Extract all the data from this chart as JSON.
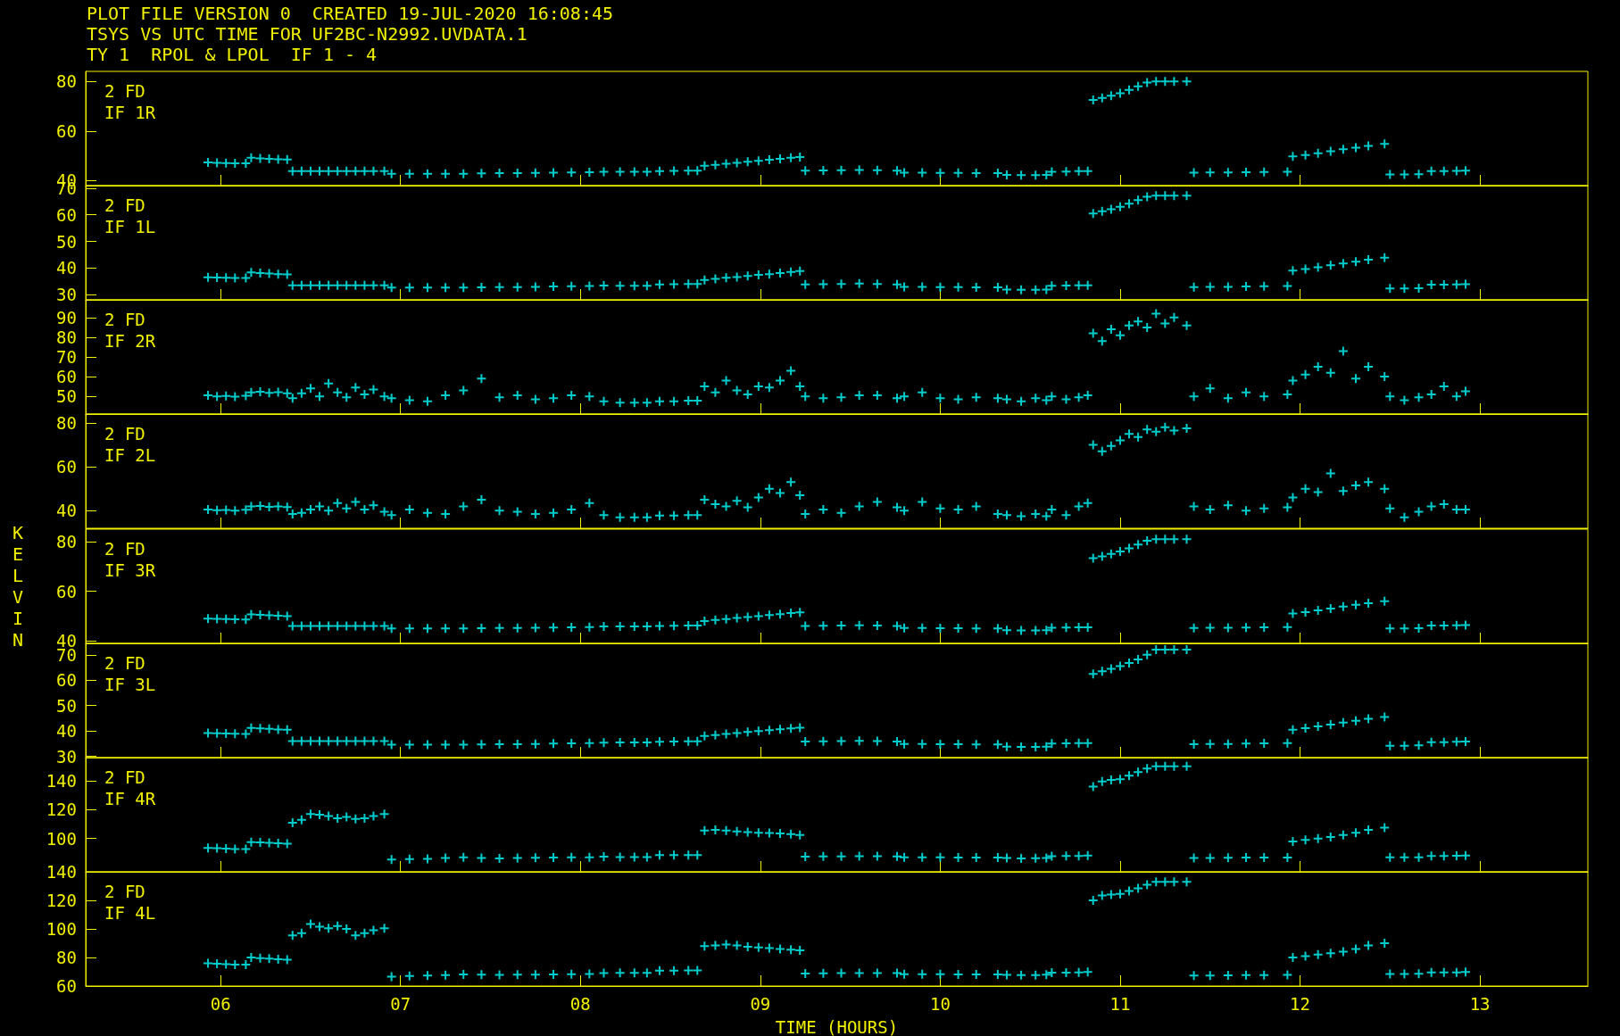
{
  "chart_data": [
    {
      "type": "scatter",
      "title": "2 FD",
      "subtitle": "IF 1R",
      "annotations": [
        "PLOT FILE VERSION 0  CREATED 19-JUL-2020 16:08:45",
        "TSYS VS UTC TIME FOR UF2BC-N2992.UVDATA.1",
        "TY 1  RPOL & LPOL  IF 1 - 4"
      ],
      "marker": "cross",
      "color": "#00ffff",
      "tick_labels": "y",
      "xlim": [
        5.25,
        13.6
      ],
      "xticks": [
        6,
        7,
        8,
        9,
        10,
        11,
        12,
        13
      ],
      "ylim": [
        38,
        84
      ],
      "yticks": [
        40,
        60,
        80
      ],
      "x": [
        5.93,
        5.98,
        6.03,
        6.08,
        6.14,
        6.17,
        6.22,
        6.27,
        6.32,
        6.37,
        6.4,
        6.45,
        6.5,
        6.55,
        6.6,
        6.65,
        6.7,
        6.75,
        6.8,
        6.85,
        6.91,
        6.95,
        7.05,
        7.15,
        7.25,
        7.35,
        7.45,
        7.55,
        7.65,
        7.75,
        7.85,
        7.95,
        8.05,
        8.13,
        8.22,
        8.3,
        8.37,
        8.44,
        8.52,
        8.6,
        8.65,
        8.69,
        8.75,
        8.81,
        8.87,
        8.93,
        8.99,
        9.05,
        9.11,
        9.17,
        9.22,
        9.25,
        9.35,
        9.45,
        9.55,
        9.65,
        9.76,
        9.8,
        9.9,
        10.0,
        10.1,
        10.2,
        10.32,
        10.37,
        10.45,
        10.53,
        10.59,
        10.62,
        10.7,
        10.77,
        10.82,
        10.85,
        10.9,
        10.95,
        11.0,
        11.05,
        11.1,
        11.15,
        11.2,
        11.25,
        11.3,
        11.37,
        11.41,
        11.5,
        11.6,
        11.7,
        11.8,
        11.93,
        11.96,
        12.03,
        12.1,
        12.17,
        12.24,
        12.31,
        12.38,
        12.47,
        12.5,
        12.58,
        12.66,
        12.73,
        12.8,
        12.87,
        12.92
      ],
      "values": [
        47.3,
        47.2,
        47.1,
        47.0,
        47.0,
        49.2,
        49.0,
        48.8,
        48.6,
        48.5,
        43.8,
        43.8,
        43.8,
        43.8,
        43.8,
        43.8,
        43.8,
        43.8,
        43.8,
        43.8,
        43.8,
        42.8,
        42.8,
        42.8,
        42.8,
        42.8,
        42.9,
        43.0,
        43.0,
        43.1,
        43.2,
        43.3,
        43.4,
        43.6,
        43.6,
        43.6,
        43.6,
        43.8,
        43.9,
        44.0,
        44.0,
        46.0,
        46.4,
        46.8,
        47.2,
        47.6,
        48.0,
        48.4,
        48.8,
        49.2,
        49.5,
        44.0,
        44.1,
        44.2,
        44.3,
        44.2,
        44.0,
        43.2,
        43.2,
        43.1,
        43.1,
        43.0,
        43.0,
        42.3,
        42.2,
        42.2,
        42.3,
        43.6,
        43.7,
        43.8,
        43.8,
        72.5,
        73.3,
        74.2,
        75.2,
        76.5,
        78.0,
        79.5,
        80.0,
        80.0,
        80.0,
        80.0,
        43.2,
        43.3,
        43.3,
        43.4,
        43.5,
        43.6,
        49.8,
        50.3,
        51.0,
        51.8,
        52.6,
        53.3,
        54.0,
        54.8,
        42.5,
        42.5,
        42.6,
        43.8,
        43.8,
        43.9,
        44.0
      ]
    },
    {
      "type": "scatter",
      "title": "2 FD",
      "subtitle": "IF 1L",
      "marker": "cross",
      "color": "#00ffff",
      "tick_labels": "y",
      "xlim": [
        5.25,
        13.6
      ],
      "xticks": [
        6,
        7,
        8,
        9,
        10,
        11,
        12,
        13
      ],
      "ylim": [
        28,
        71
      ],
      "yticks": [
        30,
        40,
        50,
        60,
        70
      ],
      "x": [
        5.93,
        5.98,
        6.03,
        6.08,
        6.14,
        6.17,
        6.22,
        6.27,
        6.32,
        6.37,
        6.4,
        6.45,
        6.5,
        6.55,
        6.6,
        6.65,
        6.7,
        6.75,
        6.8,
        6.85,
        6.91,
        6.95,
        7.05,
        7.15,
        7.25,
        7.35,
        7.45,
        7.55,
        7.65,
        7.75,
        7.85,
        7.95,
        8.05,
        8.13,
        8.22,
        8.3,
        8.37,
        8.44,
        8.52,
        8.6,
        8.65,
        8.69,
        8.75,
        8.81,
        8.87,
        8.93,
        8.99,
        9.05,
        9.11,
        9.17,
        9.22,
        9.25,
        9.35,
        9.45,
        9.55,
        9.65,
        9.76,
        9.8,
        9.9,
        10.0,
        10.1,
        10.2,
        10.32,
        10.37,
        10.45,
        10.53,
        10.59,
        10.62,
        10.7,
        10.77,
        10.82,
        10.85,
        10.9,
        10.95,
        11.0,
        11.05,
        11.1,
        11.15,
        11.2,
        11.25,
        11.3,
        11.37,
        11.41,
        11.5,
        11.6,
        11.7,
        11.8,
        11.93,
        11.96,
        12.03,
        12.1,
        12.17,
        12.24,
        12.31,
        12.38,
        12.47,
        12.5,
        12.58,
        12.66,
        12.73,
        12.8,
        12.87,
        12.92
      ],
      "values": [
        36.5,
        36.4,
        36.3,
        36.2,
        36.2,
        38.3,
        38.1,
        37.9,
        37.7,
        37.6,
        33.5,
        33.5,
        33.5,
        33.5,
        33.5,
        33.5,
        33.5,
        33.5,
        33.5,
        33.5,
        33.5,
        32.6,
        32.6,
        32.6,
        32.6,
        32.6,
        32.7,
        32.8,
        32.8,
        32.9,
        33.0,
        33.1,
        33.2,
        33.4,
        33.3,
        33.3,
        33.3,
        33.8,
        33.9,
        34.0,
        34.0,
        35.5,
        35.9,
        36.3,
        36.6,
        37.0,
        37.4,
        37.7,
        38.1,
        38.5,
        38.8,
        33.8,
        33.9,
        34.0,
        34.1,
        34.0,
        33.8,
        32.9,
        32.9,
        32.8,
        32.8,
        32.7,
        32.7,
        31.9,
        31.8,
        31.8,
        31.9,
        33.3,
        33.4,
        33.5,
        33.5,
        60.5,
        61.3,
        62.1,
        63.0,
        64.2,
        65.5,
        66.8,
        67.2,
        67.2,
        67.2,
        67.2,
        32.8,
        32.9,
        32.9,
        33.0,
        33.1,
        33.2,
        39.0,
        39.6,
        40.3,
        41.0,
        41.7,
        42.4,
        43.1,
        43.9,
        32.3,
        32.3,
        32.4,
        33.7,
        33.7,
        33.8,
        33.9
      ]
    },
    {
      "type": "scatter",
      "title": "2 FD",
      "subtitle": "IF 2R",
      "marker": "cross",
      "color": "#00ffff",
      "tick_labels": "y",
      "xlim": [
        5.25,
        13.6
      ],
      "xticks": [
        6,
        7,
        8,
        9,
        10,
        11,
        12,
        13
      ],
      "ylim": [
        41,
        99
      ],
      "yticks": [
        50,
        60,
        70,
        80,
        90
      ],
      "x": [
        5.93,
        5.98,
        6.03,
        6.08,
        6.14,
        6.17,
        6.22,
        6.27,
        6.32,
        6.37,
        6.4,
        6.45,
        6.5,
        6.55,
        6.6,
        6.65,
        6.7,
        6.75,
        6.8,
        6.85,
        6.91,
        6.95,
        7.05,
        7.15,
        7.25,
        7.35,
        7.45,
        7.55,
        7.65,
        7.75,
        7.85,
        7.95,
        8.05,
        8.13,
        8.22,
        8.3,
        8.37,
        8.44,
        8.52,
        8.6,
        8.65,
        8.69,
        8.75,
        8.81,
        8.87,
        8.93,
        8.99,
        9.05,
        9.11,
        9.17,
        9.22,
        9.25,
        9.35,
        9.45,
        9.55,
        9.65,
        9.76,
        9.8,
        9.9,
        10.0,
        10.1,
        10.2,
        10.32,
        10.37,
        10.45,
        10.53,
        10.59,
        10.62,
        10.7,
        10.77,
        10.82,
        10.85,
        10.9,
        10.95,
        11.0,
        11.05,
        11.1,
        11.15,
        11.2,
        11.25,
        11.3,
        11.37,
        11.41,
        11.5,
        11.6,
        11.7,
        11.8,
        11.93,
        11.96,
        12.03,
        12.1,
        12.17,
        12.24,
        12.31,
        12.38,
        12.47,
        12.5,
        12.58,
        12.66,
        12.73,
        12.8,
        12.87,
        12.92
      ],
      "values": [
        50.5,
        50.0,
        50.2,
        49.8,
        50.3,
        52.0,
        52.3,
        51.8,
        52.1,
        51.5,
        49.0,
        51.5,
        54.0,
        50.0,
        56.5,
        52.0,
        49.5,
        54.5,
        51.0,
        53.5,
        50.0,
        49.0,
        48.0,
        47.5,
        50.5,
        53.0,
        59.0,
        49.5,
        50.5,
        48.5,
        49.0,
        50.5,
        50.0,
        47.5,
        46.8,
        46.8,
        46.8,
        47.5,
        47.5,
        47.8,
        47.8,
        55.0,
        52.0,
        58.0,
        53.0,
        51.0,
        55.0,
        54.5,
        58.0,
        63.0,
        55.0,
        50.0,
        49.0,
        49.5,
        50.5,
        50.5,
        49.0,
        50.0,
        52.0,
        49.0,
        48.5,
        49.5,
        49.0,
        48.5,
        47.5,
        49.0,
        48.0,
        50.0,
        48.5,
        49.5,
        50.5,
        82.0,
        78.0,
        84.0,
        81.0,
        86.0,
        88.0,
        85.0,
        92.0,
        87.0,
        90.0,
        86.0,
        50.0,
        54.0,
        49.0,
        52.0,
        50.0,
        51.0,
        58.0,
        61.0,
        65.0,
        62.0,
        73.0,
        59.0,
        65.0,
        60.0,
        50.0,
        48.0,
        49.5,
        51.0,
        55.0,
        50.0,
        52.5
      ]
    },
    {
      "type": "scatter",
      "title": "2 FD",
      "subtitle": "IF 2L",
      "marker": "cross",
      "color": "#00ffff",
      "tick_labels": "y",
      "xlim": [
        5.25,
        13.6
      ],
      "xticks": [
        6,
        7,
        8,
        9,
        10,
        11,
        12,
        13
      ],
      "ylim": [
        32,
        84
      ],
      "yticks": [
        40,
        60,
        80
      ],
      "x": [
        5.93,
        5.98,
        6.03,
        6.08,
        6.14,
        6.17,
        6.22,
        6.27,
        6.32,
        6.37,
        6.4,
        6.45,
        6.5,
        6.55,
        6.6,
        6.65,
        6.7,
        6.75,
        6.8,
        6.85,
        6.91,
        6.95,
        7.05,
        7.15,
        7.25,
        7.35,
        7.45,
        7.55,
        7.65,
        7.75,
        7.85,
        7.95,
        8.05,
        8.13,
        8.22,
        8.3,
        8.37,
        8.44,
        8.52,
        8.6,
        8.65,
        8.69,
        8.75,
        8.81,
        8.87,
        8.93,
        8.99,
        9.05,
        9.11,
        9.17,
        9.22,
        9.25,
        9.35,
        9.45,
        9.55,
        9.65,
        9.76,
        9.8,
        9.9,
        10.0,
        10.1,
        10.2,
        10.32,
        10.37,
        10.45,
        10.53,
        10.59,
        10.62,
        10.7,
        10.77,
        10.82,
        10.85,
        10.9,
        10.95,
        11.0,
        11.05,
        11.1,
        11.15,
        11.2,
        11.25,
        11.3,
        11.37,
        11.41,
        11.5,
        11.6,
        11.7,
        11.8,
        11.93,
        11.96,
        12.03,
        12.1,
        12.17,
        12.24,
        12.31,
        12.38,
        12.47,
        12.5,
        12.58,
        12.66,
        12.73,
        12.8,
        12.87,
        12.92
      ],
      "values": [
        40.5,
        40.2,
        40.3,
        40.0,
        40.4,
        42.0,
        42.2,
        41.8,
        42.0,
        41.6,
        38.5,
        39.0,
        40.5,
        42.0,
        40.0,
        43.5,
        41.0,
        44.0,
        40.5,
        42.5,
        39.5,
        38.0,
        40.5,
        39.0,
        38.5,
        42.0,
        45.0,
        40.0,
        39.5,
        38.5,
        39.0,
        40.5,
        43.5,
        38.0,
        37.0,
        37.0,
        37.0,
        37.8,
        37.8,
        38.0,
        38.0,
        45.0,
        43.0,
        42.0,
        44.5,
        41.5,
        46.0,
        50.0,
        48.0,
        53.0,
        47.0,
        38.5,
        40.5,
        39.0,
        42.0,
        44.0,
        41.5,
        40.0,
        44.0,
        41.0,
        40.5,
        42.0,
        38.5,
        38.0,
        37.5,
        38.5,
        37.5,
        40.5,
        38.0,
        42.0,
        43.5,
        70.0,
        67.0,
        69.5,
        72.0,
        75.0,
        73.5,
        77.0,
        76.0,
        78.0,
        76.5,
        77.5,
        42.0,
        40.5,
        42.5,
        40.0,
        41.0,
        41.5,
        46.0,
        50.0,
        48.5,
        57.0,
        49.0,
        51.5,
        53.0,
        50.0,
        41.0,
        37.0,
        39.5,
        42.0,
        43.0,
        40.5,
        40.5
      ]
    },
    {
      "type": "scatter",
      "title": "2 FD",
      "subtitle": "IF 3R",
      "ylabel": "KELVIN",
      "marker": "cross",
      "color": "#00ffff",
      "tick_labels": "y",
      "xlim": [
        5.25,
        13.6
      ],
      "xticks": [
        6,
        7,
        8,
        9,
        10,
        11,
        12,
        13
      ],
      "ylim": [
        39,
        85
      ],
      "yticks": [
        40,
        60,
        80
      ],
      "x": [
        5.93,
        5.98,
        6.03,
        6.08,
        6.14,
        6.17,
        6.22,
        6.27,
        6.32,
        6.37,
        6.4,
        6.45,
        6.5,
        6.55,
        6.6,
        6.65,
        6.7,
        6.75,
        6.8,
        6.85,
        6.91,
        6.95,
        7.05,
        7.15,
        7.25,
        7.35,
        7.45,
        7.55,
        7.65,
        7.75,
        7.85,
        7.95,
        8.05,
        8.13,
        8.22,
        8.3,
        8.37,
        8.44,
        8.52,
        8.6,
        8.65,
        8.69,
        8.75,
        8.81,
        8.87,
        8.93,
        8.99,
        9.05,
        9.11,
        9.17,
        9.22,
        9.25,
        9.35,
        9.45,
        9.55,
        9.65,
        9.76,
        9.8,
        9.9,
        10.0,
        10.1,
        10.2,
        10.32,
        10.37,
        10.45,
        10.53,
        10.59,
        10.62,
        10.7,
        10.77,
        10.82,
        10.85,
        10.9,
        10.95,
        11.0,
        11.05,
        11.1,
        11.15,
        11.2,
        11.25,
        11.3,
        11.37,
        11.41,
        11.5,
        11.6,
        11.7,
        11.8,
        11.93,
        11.96,
        12.03,
        12.1,
        12.17,
        12.24,
        12.31,
        12.38,
        12.47,
        12.5,
        12.58,
        12.66,
        12.73,
        12.8,
        12.87,
        12.92
      ],
      "values": [
        49.0,
        48.9,
        48.8,
        48.7,
        48.6,
        50.7,
        50.5,
        50.3,
        50.1,
        50.0,
        46.0,
        46.0,
        46.0,
        46.0,
        46.0,
        46.0,
        46.0,
        46.0,
        46.0,
        46.0,
        46.0,
        45.0,
        45.0,
        45.0,
        45.0,
        45.0,
        45.1,
        45.2,
        45.2,
        45.3,
        45.4,
        45.5,
        45.6,
        45.8,
        45.8,
        45.8,
        45.8,
        46.0,
        46.1,
        46.2,
        46.2,
        48.0,
        48.4,
        48.8,
        49.2,
        49.6,
        50.0,
        50.4,
        50.8,
        51.2,
        51.5,
        46.0,
        46.1,
        46.2,
        46.3,
        46.2,
        46.0,
        45.2,
        45.2,
        45.1,
        45.1,
        45.0,
        45.0,
        44.3,
        44.2,
        44.2,
        44.3,
        45.3,
        45.4,
        45.5,
        45.5,
        73.3,
        74.0,
        75.0,
        76.0,
        77.3,
        78.8,
        80.3,
        81.0,
        81.0,
        81.0,
        81.0,
        45.2,
        45.3,
        45.3,
        45.4,
        45.5,
        45.6,
        51.0,
        51.6,
        52.3,
        53.0,
        53.8,
        54.5,
        55.2,
        56.0,
        45.0,
        45.0,
        45.1,
        46.2,
        46.2,
        46.3,
        46.4
      ]
    },
    {
      "type": "scatter",
      "title": "2 FD",
      "subtitle": "IF 3L",
      "marker": "cross",
      "color": "#00ffff",
      "tick_labels": "y",
      "xlim": [
        5.25,
        13.6
      ],
      "xticks": [
        6,
        7,
        8,
        9,
        10,
        11,
        12,
        13
      ],
      "ylim": [
        29.5,
        74.5
      ],
      "yticks": [
        30,
        40,
        50,
        60,
        70
      ],
      "x": [
        5.93,
        5.98,
        6.03,
        6.08,
        6.14,
        6.17,
        6.22,
        6.27,
        6.32,
        6.37,
        6.4,
        6.45,
        6.5,
        6.55,
        6.6,
        6.65,
        6.7,
        6.75,
        6.8,
        6.85,
        6.91,
        6.95,
        7.05,
        7.15,
        7.25,
        7.35,
        7.45,
        7.55,
        7.65,
        7.75,
        7.85,
        7.95,
        8.05,
        8.13,
        8.22,
        8.3,
        8.37,
        8.44,
        8.52,
        8.6,
        8.65,
        8.69,
        8.75,
        8.81,
        8.87,
        8.93,
        8.99,
        9.05,
        9.11,
        9.17,
        9.22,
        9.25,
        9.35,
        9.45,
        9.55,
        9.65,
        9.76,
        9.8,
        9.9,
        10.0,
        10.1,
        10.2,
        10.32,
        10.37,
        10.45,
        10.53,
        10.59,
        10.62,
        10.7,
        10.77,
        10.82,
        10.85,
        10.9,
        10.95,
        11.0,
        11.05,
        11.1,
        11.15,
        11.2,
        11.25,
        11.3,
        11.37,
        11.41,
        11.5,
        11.6,
        11.7,
        11.8,
        11.93,
        11.96,
        12.03,
        12.1,
        12.17,
        12.24,
        12.31,
        12.38,
        12.47,
        12.5,
        12.58,
        12.66,
        12.73,
        12.8,
        12.87,
        12.92
      ],
      "values": [
        39.2,
        39.1,
        39.0,
        38.9,
        38.8,
        41.2,
        41.0,
        40.8,
        40.6,
        40.5,
        36.0,
        36.0,
        36.0,
        36.0,
        36.0,
        36.0,
        36.0,
        36.0,
        36.0,
        36.0,
        36.0,
        34.6,
        34.6,
        34.6,
        34.6,
        34.6,
        34.7,
        34.8,
        34.8,
        34.9,
        35.0,
        35.1,
        35.2,
        35.4,
        35.5,
        35.5,
        35.5,
        35.7,
        35.8,
        35.9,
        35.9,
        38.0,
        38.4,
        38.8,
        39.2,
        39.6,
        40.0,
        40.3,
        40.7,
        41.0,
        41.3,
        35.8,
        35.9,
        36.0,
        36.1,
        36.0,
        35.8,
        34.9,
        34.9,
        34.8,
        34.8,
        34.7,
        34.7,
        33.8,
        33.7,
        33.7,
        33.8,
        35.0,
        35.1,
        35.2,
        35.2,
        62.5,
        63.5,
        64.5,
        65.5,
        66.8,
        68.2,
        70.0,
        72.0,
        72.0,
        72.0,
        72.0,
        34.8,
        34.9,
        34.9,
        35.0,
        35.1,
        35.2,
        40.5,
        41.1,
        41.8,
        42.5,
        43.3,
        44.0,
        44.8,
        45.5,
        34.2,
        34.2,
        34.3,
        35.6,
        35.6,
        35.7,
        35.8
      ]
    },
    {
      "type": "scatter",
      "title": "2 FD",
      "subtitle": "IF 4R",
      "marker": "cross",
      "color": "#00ffff",
      "tick_labels": "y",
      "xlim": [
        5.25,
        13.6
      ],
      "xticks": [
        6,
        7,
        8,
        9,
        10,
        11,
        12,
        13
      ],
      "ylim": [
        77,
        156
      ],
      "yticks": [
        100,
        120,
        140
      ],
      "x": [
        5.93,
        5.98,
        6.03,
        6.08,
        6.14,
        6.17,
        6.22,
        6.27,
        6.32,
        6.37,
        6.4,
        6.45,
        6.5,
        6.55,
        6.6,
        6.65,
        6.7,
        6.75,
        6.8,
        6.85,
        6.91,
        6.95,
        7.05,
        7.15,
        7.25,
        7.35,
        7.45,
        7.55,
        7.65,
        7.75,
        7.85,
        7.95,
        8.05,
        8.13,
        8.22,
        8.3,
        8.37,
        8.44,
        8.52,
        8.6,
        8.65,
        8.69,
        8.75,
        8.81,
        8.87,
        8.93,
        8.99,
        9.05,
        9.11,
        9.17,
        9.22,
        9.25,
        9.35,
        9.45,
        9.55,
        9.65,
        9.76,
        9.8,
        9.9,
        10.0,
        10.1,
        10.2,
        10.32,
        10.37,
        10.45,
        10.53,
        10.59,
        10.62,
        10.7,
        10.77,
        10.82,
        10.85,
        10.9,
        10.95,
        11.0,
        11.05,
        11.1,
        11.15,
        11.2,
        11.25,
        11.3,
        11.37,
        11.41,
        11.5,
        11.6,
        11.7,
        11.8,
        11.93,
        11.96,
        12.03,
        12.1,
        12.17,
        12.24,
        12.31,
        12.38,
        12.47,
        12.5,
        12.58,
        12.66,
        12.73,
        12.8,
        12.87,
        12.92
      ],
      "values": [
        93.5,
        93.3,
        93.0,
        92.8,
        92.8,
        97.5,
        97.3,
        97.0,
        96.8,
        96.5,
        111.0,
        113.0,
        117.0,
        116.5,
        115.5,
        114.0,
        115.0,
        113.5,
        114.0,
        115.5,
        117.0,
        85.5,
        85.8,
        86.0,
        86.5,
        87.0,
        86.5,
        86.3,
        86.5,
        86.7,
        86.8,
        87.0,
        87.0,
        87.5,
        87.2,
        87.2,
        87.2,
        88.5,
        88.5,
        88.6,
        88.6,
        105.5,
        106.0,
        105.5,
        105.0,
        104.5,
        104.0,
        103.8,
        103.5,
        103.0,
        102.5,
        87.5,
        87.6,
        87.7,
        87.8,
        87.8,
        87.7,
        87.0,
        87.0,
        87.0,
        86.9,
        86.9,
        86.8,
        86.5,
        86.3,
        86.4,
        86.6,
        87.8,
        87.9,
        88.0,
        88.2,
        136.0,
        139.5,
        140.5,
        141.0,
        143.5,
        146.0,
        148.5,
        150.0,
        150.0,
        150.0,
        150.0,
        86.5,
        86.6,
        86.7,
        86.8,
        86.8,
        86.9,
        98.0,
        99.0,
        100.0,
        101.0,
        102.5,
        104.0,
        106.0,
        107.5,
        87.0,
        87.0,
        87.1,
        88.0,
        88.0,
        88.1,
        88.2
      ]
    },
    {
      "type": "scatter",
      "title": "2 FD",
      "subtitle": "IF 4L",
      "xlabel": "TIME (HOURS)",
      "marker": "cross",
      "color": "#00ffff",
      "xlim": [
        5.25,
        13.6
      ],
      "xticks": [
        {
          "value": 6,
          "label": "06"
        },
        {
          "value": 7,
          "label": "07"
        },
        {
          "value": 8,
          "label": "08"
        },
        {
          "value": 9,
          "label": "09"
        },
        10,
        11,
        12,
        13
      ],
      "ylim": [
        60,
        140
      ],
      "yticks": [
        60,
        80,
        100,
        120,
        140
      ],
      "x": [
        5.93,
        5.98,
        6.03,
        6.08,
        6.14,
        6.17,
        6.22,
        6.27,
        6.32,
        6.37,
        6.4,
        6.45,
        6.5,
        6.55,
        6.6,
        6.65,
        6.7,
        6.75,
        6.8,
        6.85,
        6.91,
        6.95,
        7.05,
        7.15,
        7.25,
        7.35,
        7.45,
        7.55,
        7.65,
        7.75,
        7.85,
        7.95,
        8.05,
        8.13,
        8.22,
        8.3,
        8.37,
        8.44,
        8.52,
        8.6,
        8.65,
        8.69,
        8.75,
        8.81,
        8.87,
        8.93,
        8.99,
        9.05,
        9.11,
        9.17,
        9.22,
        9.25,
        9.35,
        9.45,
        9.55,
        9.65,
        9.76,
        9.8,
        9.9,
        10.0,
        10.1,
        10.2,
        10.32,
        10.37,
        10.45,
        10.53,
        10.59,
        10.62,
        10.7,
        10.77,
        10.82,
        10.85,
        10.9,
        10.95,
        11.0,
        11.05,
        11.1,
        11.15,
        11.2,
        11.25,
        11.3,
        11.37,
        11.41,
        11.5,
        11.6,
        11.7,
        11.8,
        11.93,
        11.96,
        12.03,
        12.1,
        12.17,
        12.24,
        12.31,
        12.38,
        12.47,
        12.5,
        12.58,
        12.66,
        12.73,
        12.8,
        12.87,
        12.92
      ],
      "values": [
        76.0,
        75.6,
        75.3,
        75.0,
        75.0,
        80.0,
        79.6,
        79.2,
        78.8,
        78.5,
        95.5,
        97.0,
        103.5,
        101.5,
        100.5,
        102.0,
        100.0,
        95.5,
        97.0,
        99.0,
        100.5,
        66.5,
        67.0,
        67.3,
        67.7,
        68.2,
        68.0,
        67.8,
        67.9,
        68.0,
        68.1,
        68.3,
        68.5,
        69.0,
        69.2,
        69.2,
        69.2,
        70.8,
        70.8,
        70.9,
        70.9,
        88.0,
        88.5,
        89.0,
        88.5,
        87.5,
        87.0,
        86.5,
        86.0,
        85.5,
        85.0,
        68.8,
        68.9,
        69.0,
        69.1,
        69.1,
        69.0,
        68.3,
        68.3,
        68.3,
        68.2,
        68.2,
        68.1,
        67.8,
        67.6,
        67.7,
        67.9,
        69.3,
        69.4,
        69.6,
        69.8,
        120.0,
        123.5,
        124.0,
        124.5,
        126.5,
        128.5,
        131.0,
        133.0,
        133.0,
        133.0,
        133.0,
        67.3,
        67.4,
        67.5,
        67.6,
        67.7,
        67.8,
        80.0,
        81.0,
        82.0,
        83.0,
        84.0,
        86.0,
        88.5,
        90.0,
        68.5,
        68.5,
        68.6,
        69.5,
        69.5,
        69.6,
        69.8
      ]
    }
  ]
}
